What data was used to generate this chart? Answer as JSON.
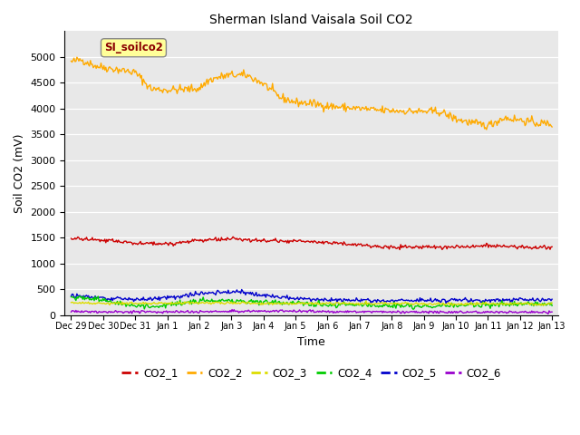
{
  "title": "Sherman Island Vaisala Soil CO2",
  "xlabel": "Time",
  "ylabel": "Soil CO2 (mV)",
  "ylim": [
    0,
    5500
  ],
  "yticks": [
    0,
    500,
    1000,
    1500,
    2000,
    2500,
    3000,
    3500,
    4000,
    4500,
    5000
  ],
  "bg_color": "#e8e8e8",
  "fig_color": "#ffffff",
  "annotation_text": "SI_soilco2",
  "annotation_color": "#8b0000",
  "annotation_bg": "#ffff99",
  "series_colors": {
    "CO2_1": "#cc0000",
    "CO2_2": "#ffaa00",
    "CO2_3": "#dddd00",
    "CO2_4": "#00cc00",
    "CO2_5": "#0000cc",
    "CO2_6": "#9900cc"
  },
  "legend_entries": [
    "CO2_1",
    "CO2_2",
    "CO2_3",
    "CO2_4",
    "CO2_5",
    "CO2_6"
  ],
  "x_tick_labels": [
    "Dec 29",
    "Dec 30",
    "Dec 31",
    "Jan 1",
    "Jan 2",
    "Jan 3",
    "Jan 4",
    "Jan 5",
    "Jan 6",
    "Jan 7",
    "Jan 8",
    "Jan 9",
    "Jan 10",
    "Jan 11",
    "Jan 12",
    "Jan 13"
  ]
}
